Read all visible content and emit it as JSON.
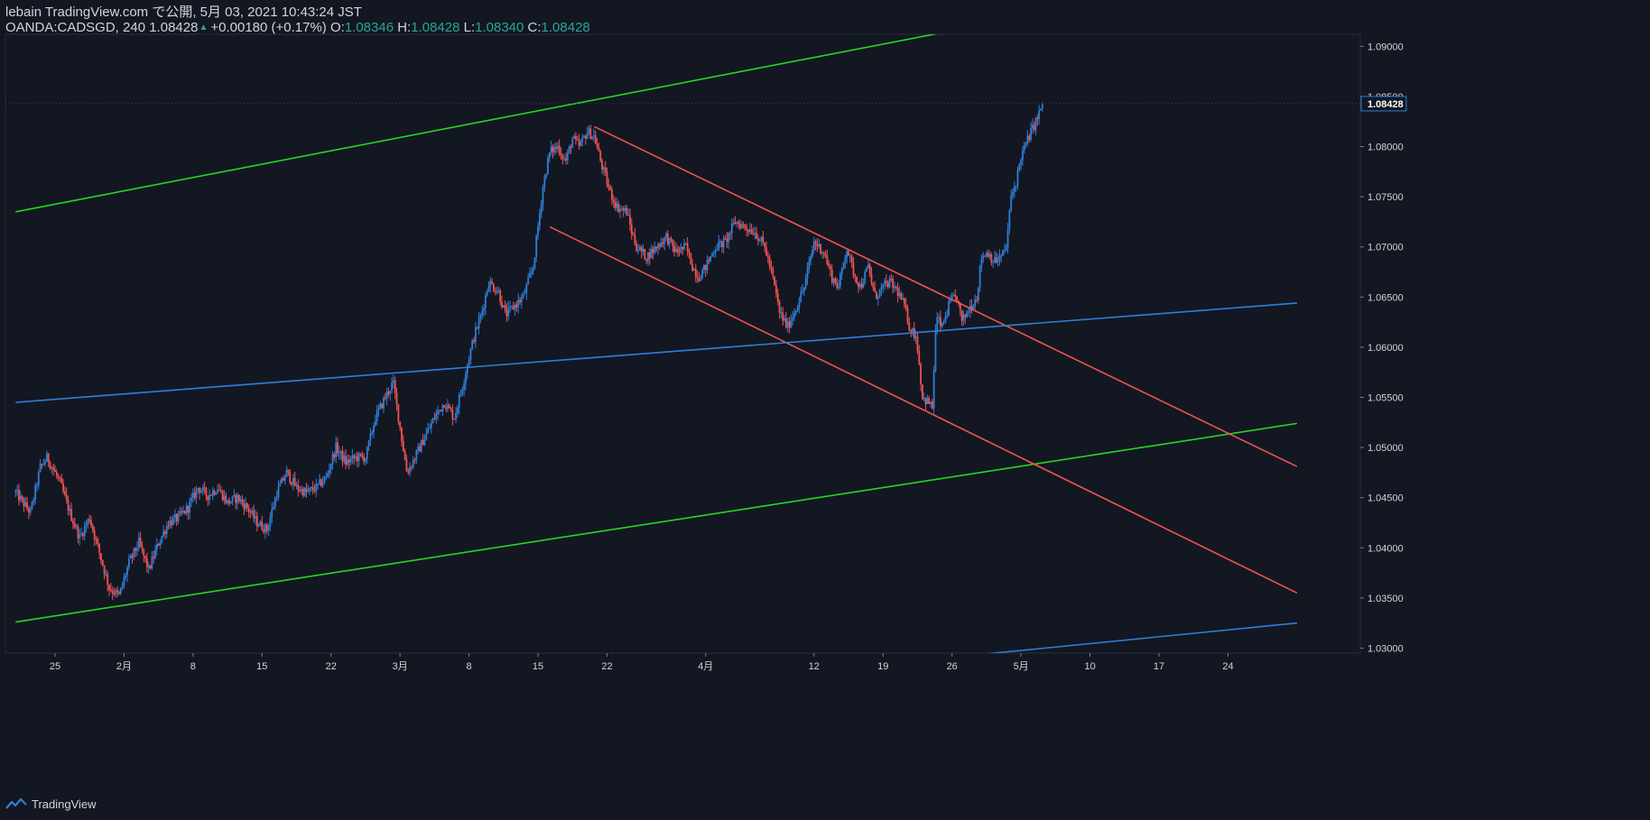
{
  "header": {
    "publisher": "lebain TradingView.com で公開, 5月 03, 2021 10:43:24 JST",
    "symbol": "OANDA:CADSGD, 240",
    "last": "1.08428",
    "change": "+0.00180 (+0.17%)",
    "o_label": "O:",
    "o_val": "1.08346",
    "h_label": "H:",
    "h_val": "1.08428",
    "l_label": "L:",
    "l_val": "1.08340",
    "c_label": "C:",
    "c_val": "1.08428"
  },
  "footer": {
    "brand": "TradingView"
  },
  "colors": {
    "background": "#131722",
    "up": "#2e7fd6",
    "down": "#ef5350",
    "green_line": "#22d822",
    "red_line": "#ef5350",
    "blue_line": "#2e7fd6",
    "axis_text": "#d1d4dc",
    "price_tag_bg": "#2e7fd6"
  },
  "chart_data": {
    "type": "candlestick",
    "timeframe": "240",
    "ylim": [
      1.0295,
      1.0912
    ],
    "y_ticks": [
      "1.03000",
      "1.03500",
      "1.04000",
      "1.04500",
      "1.05000",
      "1.05500",
      "1.06000",
      "1.06500",
      "1.07000",
      "1.07500",
      "1.08000",
      "1.08500",
      "1.09000"
    ],
    "x_ticks": [
      {
        "label": "25",
        "day": 4
      },
      {
        "label": "2月",
        "day": 11
      },
      {
        "label": "8",
        "day": 18
      },
      {
        "label": "15",
        "day": 25
      },
      {
        "label": "22",
        "day": 32
      },
      {
        "label": "3月",
        "day": 39
      },
      {
        "label": "8",
        "day": 46
      },
      {
        "label": "15",
        "day": 53
      },
      {
        "label": "22",
        "day": 60
      },
      {
        "label": "4月",
        "day": 70
      },
      {
        "label": "12",
        "day": 81
      },
      {
        "label": "19",
        "day": 88
      },
      {
        "label": "26",
        "day": 95
      },
      {
        "label": "5月",
        "day": 102
      },
      {
        "label": "10",
        "day": 109
      },
      {
        "label": "17",
        "day": 116
      },
      {
        "label": "24",
        "day": 123
      }
    ],
    "last_price": "1.08428",
    "price_path": [
      [
        0,
        1.0455
      ],
      [
        1.5,
        1.0435
      ],
      [
        2.5,
        1.048
      ],
      [
        3.2,
        1.049
      ],
      [
        4.5,
        1.0465
      ],
      [
        5.5,
        1.0435
      ],
      [
        6.5,
        1.041
      ],
      [
        7.5,
        1.043
      ],
      [
        8.5,
        1.0395
      ],
      [
        9.5,
        1.036
      ],
      [
        10.5,
        1.0352
      ],
      [
        11.5,
        1.0385
      ],
      [
        12.5,
        1.0405
      ],
      [
        13.5,
        1.0378
      ],
      [
        14.5,
        1.0405
      ],
      [
        15.5,
        1.0425
      ],
      [
        16.5,
        1.043
      ],
      [
        17.5,
        1.044
      ],
      [
        18.5,
        1.046
      ],
      [
        19.5,
        1.0452
      ],
      [
        20.5,
        1.046
      ],
      [
        21.5,
        1.0445
      ],
      [
        22.5,
        1.045
      ],
      [
        23.5,
        1.044
      ],
      [
        24.5,
        1.0425
      ],
      [
        25.5,
        1.0418
      ],
      [
        26.5,
        1.0455
      ],
      [
        27.5,
        1.0475
      ],
      [
        28.5,
        1.046
      ],
      [
        29.5,
        1.0455
      ],
      [
        30.5,
        1.046
      ],
      [
        31.5,
        1.047
      ],
      [
        32.5,
        1.05
      ],
      [
        33.5,
        1.0485
      ],
      [
        34.5,
        1.049
      ],
      [
        35.5,
        1.049
      ],
      [
        36.5,
        1.053
      ],
      [
        37.5,
        1.055
      ],
      [
        38.3,
        1.0565
      ],
      [
        39,
        1.052
      ],
      [
        39.7,
        1.0475
      ],
      [
        40.5,
        1.049
      ],
      [
        41.5,
        1.051
      ],
      [
        42.5,
        1.053
      ],
      [
        43.5,
        1.0545
      ],
      [
        44.5,
        1.053
      ],
      [
        45.3,
        1.056
      ],
      [
        46,
        1.059
      ],
      [
        46.5,
        1.061
      ],
      [
        47.3,
        1.0635
      ],
      [
        48,
        1.0665
      ],
      [
        49,
        1.0655
      ],
      [
        49.7,
        1.0632
      ],
      [
        50.5,
        1.064
      ],
      [
        51.5,
        1.065
      ],
      [
        52.5,
        1.068
      ],
      [
        53,
        1.072
      ],
      [
        53.5,
        1.076
      ],
      [
        54.2,
        1.0795
      ],
      [
        55,
        1.08
      ],
      [
        55.8,
        1.0785
      ],
      [
        56.5,
        1.0808
      ],
      [
        57.2,
        1.08
      ],
      [
        58,
        1.0815
      ],
      [
        58.7,
        1.081
      ],
      [
        59.5,
        1.078
      ],
      [
        60.3,
        1.0755
      ],
      [
        61,
        1.074
      ],
      [
        62,
        1.0735
      ],
      [
        62.5,
        1.0715
      ],
      [
        63,
        1.07
      ],
      [
        64,
        1.069
      ],
      [
        65,
        1.07
      ],
      [
        66,
        1.071
      ],
      [
        67,
        1.0695
      ],
      [
        68,
        1.07
      ],
      [
        68.7,
        1.068
      ],
      [
        69.3,
        1.067
      ],
      [
        70,
        1.068
      ],
      [
        71,
        1.07
      ],
      [
        72,
        1.0705
      ],
      [
        73,
        1.0725
      ],
      [
        74,
        1.072
      ],
      [
        75,
        1.0715
      ],
      [
        76,
        1.07
      ],
      [
        76.8,
        1.067
      ],
      [
        77.5,
        1.0635
      ],
      [
        78.3,
        1.062
      ],
      [
        79,
        1.0635
      ],
      [
        80,
        1.066
      ],
      [
        81,
        1.0705
      ],
      [
        82,
        1.0695
      ],
      [
        82.8,
        1.067
      ],
      [
        83.5,
        1.066
      ],
      [
        84.3,
        1.07
      ],
      [
        85,
        1.0675
      ],
      [
        85.7,
        1.066
      ],
      [
        86.5,
        1.068
      ],
      [
        87.2,
        1.065
      ],
      [
        88,
        1.066
      ],
      [
        88.7,
        1.0665
      ],
      [
        89.5,
        1.0655
      ],
      [
        90.2,
        1.064
      ],
      [
        90.7,
        1.062
      ],
      [
        91.4,
        1.061
      ],
      [
        92,
        1.055
      ],
      [
        92.6,
        1.0545
      ],
      [
        93,
        1.054
      ],
      [
        93.4,
        1.063
      ],
      [
        94,
        1.062
      ],
      [
        94.8,
        1.0645
      ],
      [
        95.5,
        1.065
      ],
      [
        96,
        1.0625
      ],
      [
        96.8,
        1.064
      ],
      [
        97.5,
        1.065
      ],
      [
        98,
        1.069
      ],
      [
        98.6,
        1.0695
      ],
      [
        99.3,
        1.0685
      ],
      [
        100,
        1.069
      ],
      [
        100.5,
        1.07
      ],
      [
        101,
        1.075
      ],
      [
        101.5,
        1.0765
      ],
      [
        102,
        1.079
      ],
      [
        102.8,
        1.081
      ],
      [
        103.5,
        1.0825
      ],
      [
        104.2,
        1.08428
      ]
    ],
    "trend_lines": [
      {
        "color": "green",
        "p1": [
          0,
          1.0735
        ],
        "p2": [
          130,
          1.0982
        ]
      },
      {
        "color": "green",
        "p1": [
          0,
          1.0326
        ],
        "p2": [
          130,
          1.0524
        ]
      },
      {
        "color": "red",
        "p1": [
          58.7,
          1.082
        ],
        "p2": [
          130,
          1.0481
        ]
      },
      {
        "color": "red",
        "p1": [
          54.2,
          1.072
        ],
        "p2": [
          130,
          1.0355
        ]
      },
      {
        "color": "blue",
        "p1": [
          0,
          1.0545
        ],
        "p2": [
          130,
          1.0644
        ]
      },
      {
        "color": "blue",
        "p1": [
          0,
          1.0198
        ],
        "p2": [
          130,
          1.0325
        ]
      }
    ]
  }
}
